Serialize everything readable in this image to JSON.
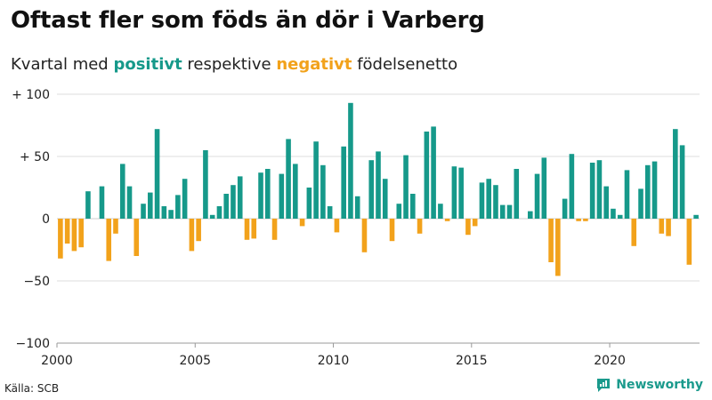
{
  "title": "Oftast fler som föds än dör i Varberg",
  "subtitle": {
    "prefix": "Kvartal med ",
    "positive": "positivt",
    "middle": " respektive ",
    "negative": "negativt",
    "suffix": " födelsenetto"
  },
  "source": "Källa: SCB",
  "brand": "Newsworthy",
  "colors": {
    "positive": "#16998a",
    "negative": "#f2a21b",
    "brand": "#1a9a8c",
    "grid": "#dddddd"
  },
  "chart_data": {
    "type": "bar",
    "title": "Oftast fler som föds än dör i Varberg",
    "xlabel": "",
    "ylabel": "",
    "ylim": [
      -100,
      100
    ],
    "yticks": [
      100,
      50,
      0,
      -50,
      -100
    ],
    "ytick_labels": [
      "+ 100",
      "+  50",
      "0",
      "−50",
      "−100"
    ],
    "xticks": [
      2000,
      2005,
      2010,
      2015,
      2020
    ],
    "xtick_labels": [
      "2000",
      "2005",
      "2010",
      "2015",
      "2020"
    ],
    "start_year": 2000,
    "quarters_per_year": 4,
    "values": [
      -32,
      -20,
      -26,
      -23,
      22,
      0,
      26,
      -34,
      -12,
      44,
      26,
      -30,
      12,
      21,
      72,
      10,
      7,
      19,
      32,
      -26,
      -18,
      55,
      3,
      10,
      20,
      27,
      34,
      -17,
      -16,
      37,
      40,
      -17,
      36,
      64,
      44,
      -6,
      25,
      62,
      43,
      10,
      -11,
      58,
      93,
      18,
      -27,
      47,
      54,
      32,
      -18,
      12,
      51,
      20,
      -12,
      70,
      74,
      12,
      -2,
      42,
      41,
      -13,
      -6,
      29,
      32,
      27,
      11,
      11,
      40,
      0,
      6,
      36,
      49,
      -35,
      -46,
      16,
      52,
      -2,
      -2,
      45,
      47,
      26,
      8,
      3,
      39,
      -22,
      24,
      43,
      46,
      -12,
      -14,
      72,
      59,
      -37,
      3
    ]
  }
}
